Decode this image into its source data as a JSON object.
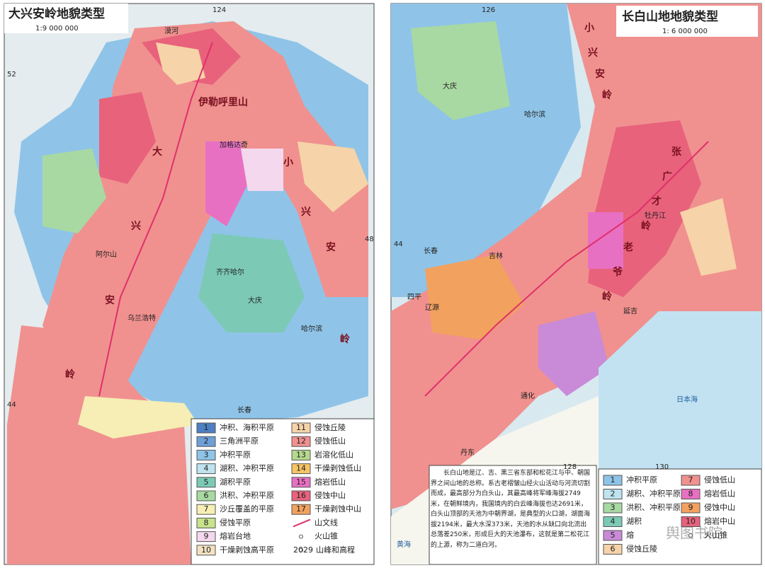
{
  "left_map": {
    "title": "大兴安岭地貌类型",
    "scale": "1:9 000 000",
    "coordinates": [
      "124",
      "52",
      "48",
      "44"
    ],
    "places": [
      "漠河",
      "加格达奇",
      "大",
      "兴",
      "安",
      "岭",
      "小",
      "兴",
      "安",
      "岭",
      "伊勒呼里山",
      "齐齐哈尔",
      "大庆",
      "哈尔滨",
      "乌兰浩特",
      "长春",
      "阿尔山"
    ],
    "legend": [
      {
        "number": "1",
        "label": "冲积、海积平原",
        "color": "#4d7fc2"
      },
      {
        "number": "2",
        "label": "三角洲平原",
        "color": "#6e9fd8"
      },
      {
        "number": "3",
        "label": "冲积平原",
        "color": "#8fc4e8"
      },
      {
        "number": "4",
        "label": "湖积、冲积平原",
        "color": "#bfe3ef"
      },
      {
        "number": "5",
        "label": "湖积平原",
        "color": "#7ccab6"
      },
      {
        "number": "6",
        "label": "洪积、冲积平原",
        "color": "#a8d9a2"
      },
      {
        "number": "7",
        "label": "沙丘覆盖的平原",
        "color": "#f6eeb4"
      },
      {
        "number": "8",
        "label": "侵蚀平原",
        "color": "#c8e38c"
      },
      {
        "number": "9",
        "label": "熔岩台地",
        "color": "#f4d8ee"
      },
      {
        "number": "10",
        "label": "干燥剥蚀高平原",
        "color": "#f2e2c2"
      },
      {
        "number": "11",
        "label": "侵蚀丘陵",
        "color": "#f6d3a8"
      },
      {
        "number": "12",
        "label": "侵蚀低山",
        "color": "#f0918f"
      },
      {
        "number": "13",
        "label": "岩溶化低山",
        "color": "#b5d98f"
      },
      {
        "number": "14",
        "label": "干燥剥蚀低山",
        "color": "#f7c466"
      },
      {
        "number": "15",
        "label": "熔岩低山",
        "color": "#e870c2"
      },
      {
        "number": "16",
        "label": "侵蚀中山",
        "color": "#e8627c"
      },
      {
        "number": "17",
        "label": "干燥剥蚀中山",
        "color": "#f2a15f"
      }
    ],
    "symbols": [
      {
        "label": "山文线"
      },
      {
        "label": "火山锥"
      },
      {
        "label": "山峰和高程",
        "elevation": "2029"
      }
    ]
  },
  "right_map": {
    "title": "长白山地地貌类型",
    "scale": "1: 6 000 000",
    "coordinates": [
      "126",
      "128",
      "44",
      "130"
    ],
    "places": [
      "哈尔滨",
      "长春",
      "吉林",
      "大庆",
      "牡丹江",
      "延吉",
      "四平",
      "辽源",
      "通化",
      "丹东",
      "日本海",
      "黄海",
      "张",
      "广",
      "才",
      "岭",
      "老",
      "爷",
      "岭",
      "小",
      "兴",
      "安",
      "岭"
    ],
    "legend": [
      {
        "number": "1",
        "label": "冲积平原",
        "color": "#8fc4e8"
      },
      {
        "number": "2",
        "label": "湖积、冲积平原",
        "color": "#bfe3ef"
      },
      {
        "number": "3",
        "label": "洪积、冲积平原",
        "color": "#a8d9a2"
      },
      {
        "number": "4",
        "label": "湖积",
        "color": "#7ccab6"
      },
      {
        "number": "5",
        "label": "熔",
        "color": "#c98ad8"
      },
      {
        "number": "6",
        "label": "侵蚀丘陵",
        "color": "#f6d3a8"
      },
      {
        "number": "7",
        "label": "侵蚀低山",
        "color": "#f0918f"
      },
      {
        "number": "8",
        "label": "熔岩低山",
        "color": "#e870c2"
      },
      {
        "number": "9",
        "label": "侵蚀中山",
        "color": "#f2a15f"
      },
      {
        "number": "10",
        "label": "熔岩中山",
        "color": "#e8627c"
      }
    ],
    "symbols": [
      {
        "label": "火山锥"
      }
    ]
  },
  "description": "长白山地是辽、吉、黑三省东部和松花江与中、朝国界之间山地的总称。系古老褶皱山经火山活动与河流切割而成，最高部分为白头山，其最高峰将军峰海拔2749米，在朝鲜境内，我国境内的白云峰海拔也达2691米，白头山顶部的天池为中朝界湖，是典型的火口湖，湖面海拔2194米，最大水深373米，天池的水从缺口向北流出总落差250米，形成巨大的天池瀑布，这就是第二松花江的上源，称为二道白河。",
  "watermark": "舆图书院"
}
